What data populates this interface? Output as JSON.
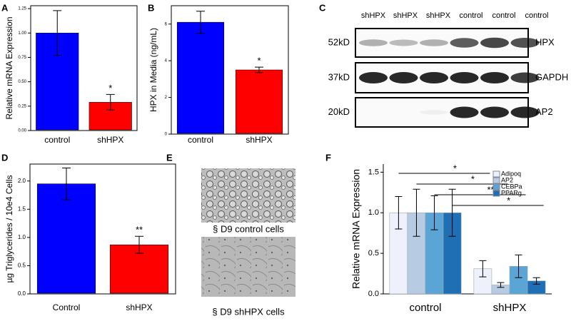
{
  "chart_data": [
    {
      "panel": "A",
      "type": "bar",
      "ylabel": "Relative mRNA Expression",
      "categories": [
        "control",
        "shHPX"
      ],
      "values": [
        1.0,
        0.29
      ],
      "errors": [
        0.23,
        0.08
      ],
      "colors": [
        "#0000ff",
        "#ff0000"
      ],
      "annotations": [
        null,
        "*"
      ],
      "ylim": [
        0,
        1.28
      ],
      "yticks": [
        {
          "value": 0,
          "label": "0.00"
        },
        {
          "value": 0.25,
          "label": "0.25"
        },
        {
          "value": 0.5,
          "label": "0.50"
        },
        {
          "value": 0.75,
          "label": "0.75"
        },
        {
          "value": 1.0,
          "label": "1.00"
        },
        {
          "value": 1.25,
          "label": "1.25"
        }
      ]
    },
    {
      "panel": "B",
      "type": "bar",
      "ylabel": "HPX in Media (ng/mL)",
      "categories": [
        "control",
        "shHPX"
      ],
      "values": [
        6.1,
        3.5
      ],
      "errors": [
        0.6,
        0.15
      ],
      "colors": [
        "#0000ff",
        "#ff0000"
      ],
      "annotations": [
        null,
        "*"
      ],
      "ylim": [
        0,
        7
      ],
      "yticks": [
        0,
        2,
        4,
        6
      ]
    },
    {
      "panel": "D",
      "type": "bar",
      "ylabel": "µg Triglycerides / 10e4 Cells",
      "categories": [
        "Control",
        "shHPX"
      ],
      "values": [
        1.95,
        0.87
      ],
      "errors": [
        0.28,
        0.15
      ],
      "colors": [
        "#0000ff",
        "#ff0000"
      ],
      "annotations": [
        null,
        "**"
      ],
      "ylim": [
        0,
        2.3
      ],
      "yticks": [
        {
          "value": 0,
          "label": "0.0"
        },
        {
          "value": 0.5,
          "label": "0.5"
        },
        {
          "value": 1.0,
          "label": "1.0"
        },
        {
          "value": 1.5,
          "label": "1.5"
        },
        {
          "value": 2.0,
          "label": "2.0"
        }
      ]
    },
    {
      "panel": "F",
      "type": "grouped-bar",
      "ylabel": "Relative mRNA Expression",
      "categories": [
        "control",
        "shHPX"
      ],
      "legend": "top-right",
      "series": [
        {
          "name": "Adipoq",
          "color": "#eef0fb",
          "values": [
            1.0,
            0.31
          ],
          "errors": [
            0.2,
            0.1
          ]
        },
        {
          "name": "AP2",
          "color": "#b7cbe3",
          "values": [
            1.0,
            0.11
          ],
          "errors": [
            0.29,
            0.03
          ]
        },
        {
          "name": "CEBPa",
          "color": "#5aa5d6",
          "values": [
            1.0,
            0.34
          ],
          "errors": [
            0.21,
            0.14
          ]
        },
        {
          "name": "PPARg",
          "color": "#1f6fb5",
          "values": [
            1.0,
            0.16
          ],
          "errors": [
            0.29,
            0.04
          ]
        }
      ],
      "significance": [
        "*",
        "*",
        "**",
        "*"
      ],
      "ylim": [
        0,
        1.6
      ],
      "yticks": [
        {
          "value": 0,
          "label": "0.0"
        },
        {
          "value": 0.5,
          "label": "0.5"
        },
        {
          "value": 1.0,
          "label": "1.0"
        },
        {
          "value": 1.5,
          "label": "1.5"
        }
      ]
    }
  ],
  "blot": {
    "panel": "C",
    "lanes": [
      "shHPX",
      "shHPX",
      "shHPX",
      "control",
      "control",
      "control"
    ],
    "rows": [
      {
        "size": "52kD",
        "label": "HPX"
      },
      {
        "size": "37kD",
        "label": "GAPDH"
      },
      {
        "size": "20kD",
        "label": "AP2"
      }
    ]
  },
  "images": {
    "panel": "E",
    "captions": [
      "§ D9 control cells",
      "§ D9 shHPX cells"
    ]
  }
}
